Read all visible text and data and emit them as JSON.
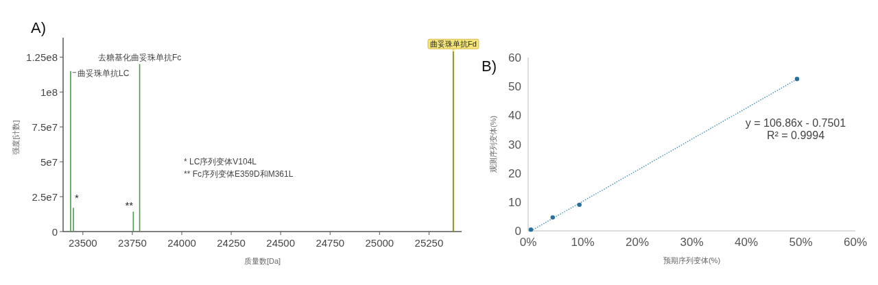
{
  "chart_data": [
    {
      "type": "bar",
      "title": "A)",
      "xlabel": "质量数[Da]",
      "ylabel": "强度[计数]",
      "x": [
        23438,
        23452,
        23755,
        23787,
        25373
      ],
      "values": [
        115000000,
        17000000,
        14300000,
        120000000,
        129000000
      ],
      "colors": [
        "#4c9a4c",
        "#4c9a4c",
        "#4c9a4c",
        "#4c9a4c",
        "#7a8a30"
      ],
      "xlim": [
        23400,
        25415
      ],
      "xticks": [
        23500,
        23750,
        24000,
        24250,
        24500,
        24750,
        25000,
        25250
      ],
      "ylim": [
        0,
        135000000
      ],
      "yticks": [
        0,
        {
          "value": 25000000,
          "label": "2.5e7"
        },
        {
          "value": 50000000,
          "label": "5e7"
        },
        {
          "value": 75000000,
          "label": "7.5e7"
        },
        {
          "value": 100000000,
          "label": "1e8"
        },
        {
          "value": 125000000,
          "label": "1.25e8"
        }
      ],
      "bands": [
        {
          "axis": "x",
          "from": 25368,
          "to": 25378,
          "color": "#f3e57a"
        }
      ],
      "annotations": [
        {
          "text": "曲妥珠单抗LC",
          "x": 23438,
          "y": 115000000
        },
        {
          "text": "*",
          "x": 23452,
          "y": 17000000
        },
        {
          "text": "**",
          "x": 23755,
          "y": 14300000
        },
        {
          "text": "去糖基化曲妥珠单抗Fc",
          "x": 23787,
          "y": 120000000
        },
        {
          "text": "曲妥珠单抗Fd",
          "x": 25373,
          "y": 129000000
        },
        "*  LC序列变体V104L",
        "** Fc序列变体E359D和M361L"
      ],
      "grid": false
    },
    {
      "type": "scatter",
      "title": "B)",
      "xlabel": "预期序列变体(%)",
      "ylabel": "观测序列变体(%)",
      "series": [
        {
          "type": "scatter",
          "color": "#2a6f9a",
          "x": [
            0.5,
            4.5,
            9.4,
            49.3
          ],
          "values": [
            0.44,
            4.66,
            9.05,
            52.6
          ],
          "marker": "circle"
        },
        {
          "type": "line",
          "color": "#3a8fb7",
          "x": [
            0.5,
            49.3
          ],
          "values": [
            0,
            52.5
          ],
          "line_style": "dotted",
          "marker": "none"
        }
      ],
      "xlim": [
        0,
        60
      ],
      "xticks": [
        {
          "value": 0,
          "label": "0%"
        },
        {
          "value": 10,
          "label": "10%"
        },
        {
          "value": 20,
          "label": "20%"
        },
        {
          "value": 30,
          "label": "30%"
        },
        {
          "value": 40,
          "label": "40%"
        },
        {
          "value": 50,
          "label": "50%"
        },
        {
          "value": 60,
          "label": "60%"
        }
      ],
      "ylim": [
        0,
        60
      ],
      "yticks": [
        0,
        10,
        20,
        30,
        40,
        50,
        60
      ],
      "annotations": [
        "y = 106.86x - 0.7501",
        "R² = 0.9994"
      ],
      "grid": false
    }
  ]
}
